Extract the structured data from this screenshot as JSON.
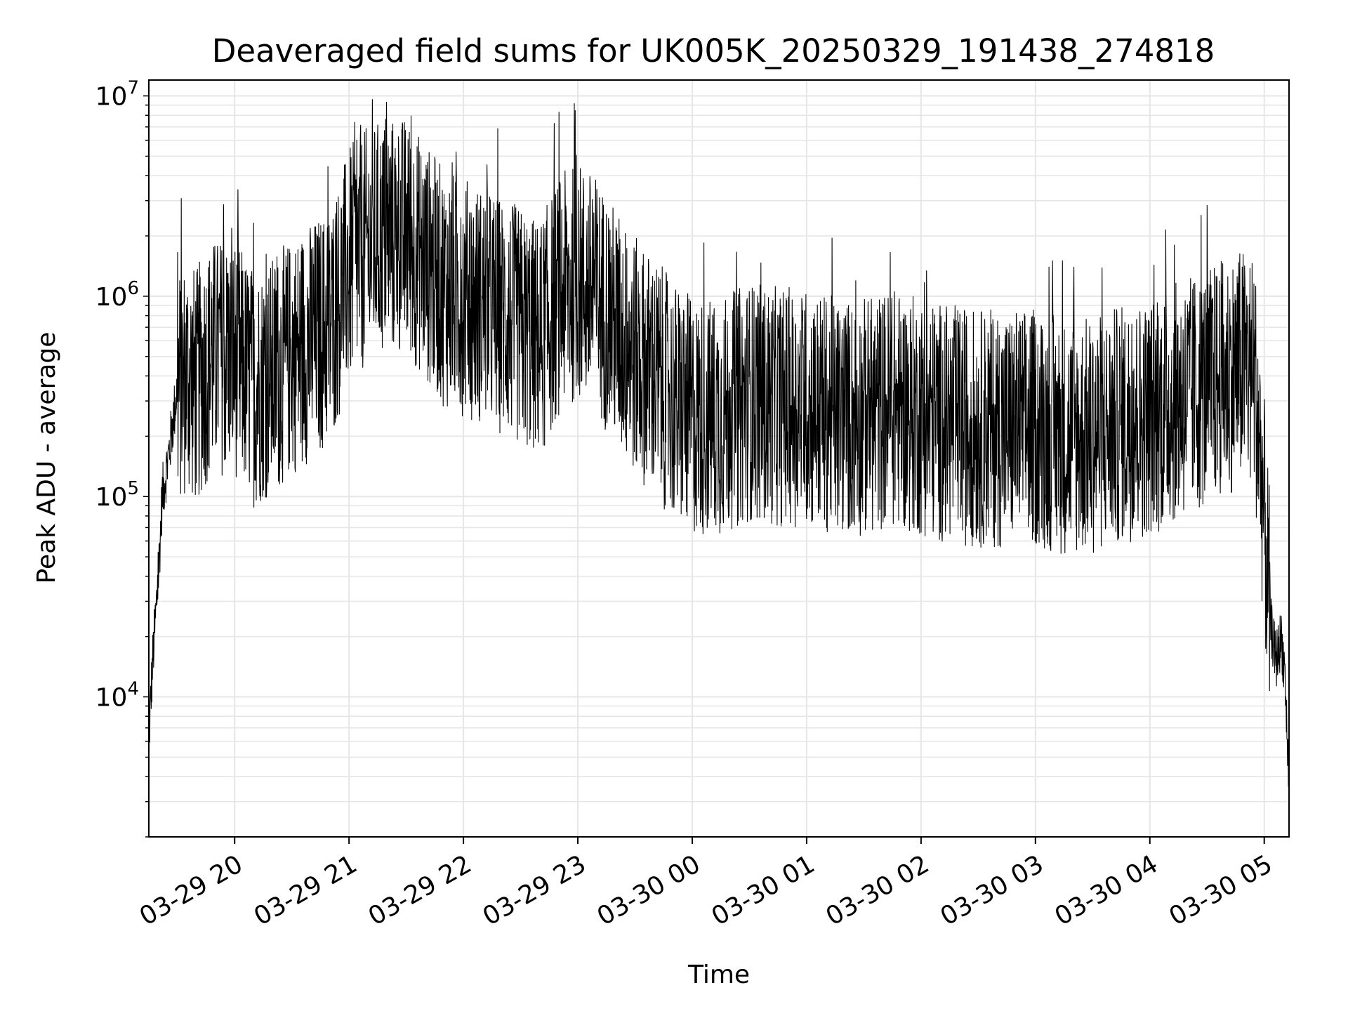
{
  "chart_data": {
    "type": "line",
    "title": "Deaveraged field sums for UK005K_20250329_191438_274818",
    "xlabel": "Time",
    "ylabel": "Peak ADU - average",
    "yscale": "log",
    "ylim": [
      2000,
      12000000
    ],
    "xlim": [
      "03-29 19:15",
      "03-30 05:13"
    ],
    "grid": true,
    "line_color": "#000000",
    "x_ticks": [
      "03-29 20",
      "03-29 21",
      "03-29 22",
      "03-29 23",
      "03-30 00",
      "03-30 01",
      "03-30 02",
      "03-30 03",
      "03-30 04",
      "03-30 05"
    ],
    "y_ticks": [
      {
        "value": 10000,
        "base": "10",
        "exp": "4"
      },
      {
        "value": 100000,
        "base": "10",
        "exp": "5"
      },
      {
        "value": 1000000,
        "base": "10",
        "exp": "6"
      },
      {
        "value": 10000000,
        "base": "10",
        "exp": "7"
      }
    ],
    "series": [
      {
        "x": [
          "03-29 19:15",
          "03-29 19:17",
          "03-29 19:20",
          "03-29 19:22",
          "03-29 19:25",
          "03-29 19:30",
          "03-29 19:35",
          "03-29 19:40",
          "03-29 19:45",
          "03-29 19:50",
          "03-29 20:00",
          "03-29 20:10",
          "03-29 20:20",
          "03-29 20:30",
          "03-29 20:40",
          "03-29 20:50",
          "03-29 21:00",
          "03-29 21:10",
          "03-29 21:20",
          "03-29 21:30",
          "03-29 21:40",
          "03-29 21:50",
          "03-29 22:00",
          "03-29 22:10",
          "03-29 22:20",
          "03-29 22:30",
          "03-29 22:40",
          "03-29 22:50",
          "03-29 23:00",
          "03-29 23:10",
          "03-29 23:20",
          "03-29 23:30",
          "03-29 23:40",
          "03-29 23:50",
          "03-30 00:00",
          "03-30 00:15",
          "03-30 00:30",
          "03-30 00:45",
          "03-30 01:00",
          "03-30 01:15",
          "03-30 01:30",
          "03-30 01:45",
          "03-30 02:00",
          "03-30 02:15",
          "03-30 02:30",
          "03-30 02:45",
          "03-30 03:00",
          "03-30 03:15",
          "03-30 03:30",
          "03-30 03:45",
          "03-30 04:00",
          "03-30 04:15",
          "03-30 04:30",
          "03-30 04:40",
          "03-30 04:50",
          "03-30 04:55",
          "03-30 05:00",
          "03-30 05:03",
          "03-30 05:06",
          "03-30 05:09",
          "03-30 05:11",
          "03-30 05:13"
        ],
        "y": [
          6000,
          15000,
          40000,
          100000,
          150000,
          350000,
          400000,
          350000,
          450000,
          500000,
          500000,
          350000,
          400000,
          500000,
          600000,
          700000,
          1400000,
          1800000,
          2000000,
          2000000,
          1500000,
          1100000,
          1000000,
          900000,
          800000,
          700000,
          600000,
          1000000,
          1200000,
          1000000,
          700000,
          500000,
          400000,
          300000,
          250000,
          250000,
          300000,
          280000,
          280000,
          250000,
          250000,
          280000,
          250000,
          230000,
          220000,
          220000,
          220000,
          200000,
          200000,
          230000,
          250000,
          300000,
          350000,
          400000,
          450000,
          400000,
          80000,
          25000,
          15000,
          20000,
          12000,
          3500
        ]
      }
    ]
  }
}
